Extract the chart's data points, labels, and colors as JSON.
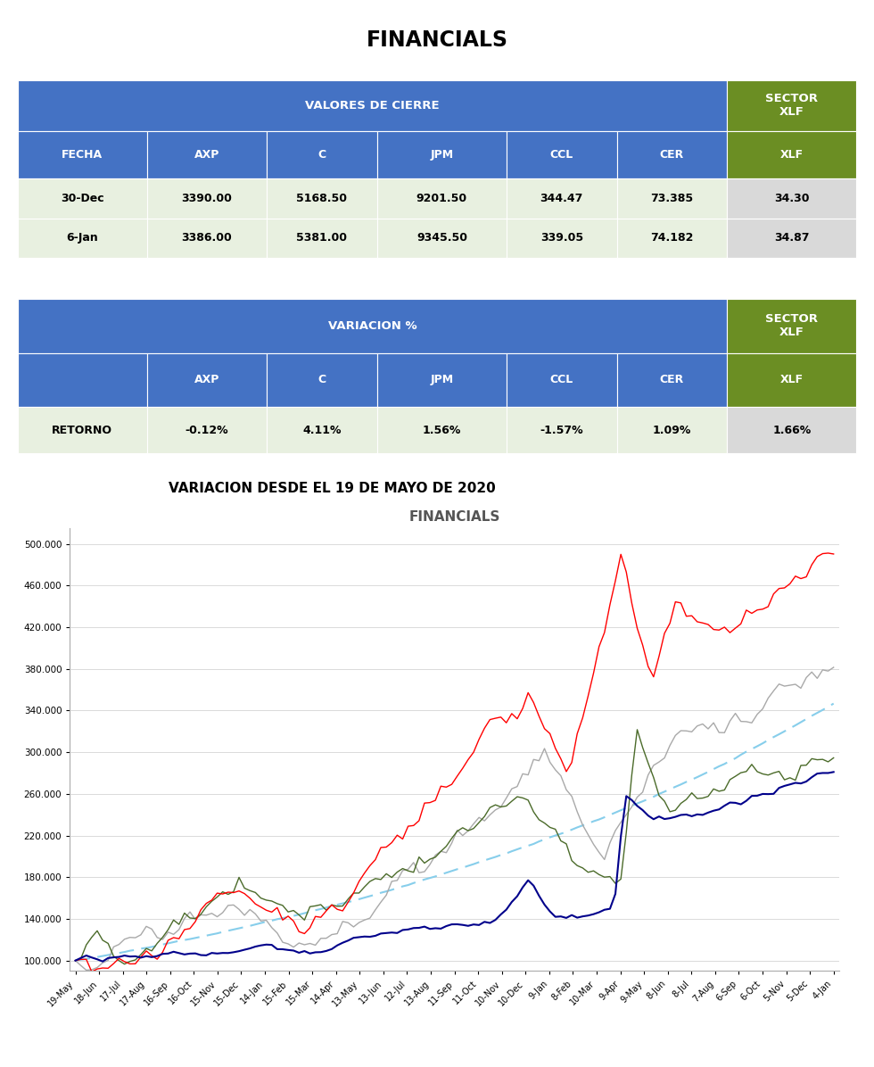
{
  "title": "FINANCIALS",
  "table1_header_main": "VALORES DE CIERRE",
  "table1_header_sector": "SECTOR\nXLF",
  "table1_cols": [
    "FECHA",
    "AXP",
    "C",
    "JPM",
    "CCL",
    "CER"
  ],
  "table1_rows": [
    [
      "30-Dec",
      "3390.00",
      "5168.50",
      "9201.50",
      "344.47",
      "73.385",
      "34.30"
    ],
    [
      "6-Jan",
      "3386.00",
      "5381.00",
      "9345.50",
      "339.05",
      "74.182",
      "34.87"
    ]
  ],
  "table2_header_main": "VARIACION %",
  "table2_header_sector": "SECTOR\nXLF",
  "table2_row": [
    "RETORNO",
    "-0.12%",
    "4.11%",
    "1.56%",
    "-1.57%",
    "1.09%",
    "1.66%"
  ],
  "section2_title": "VARIACION DESDE EL 19 DE MAYO DE 2020",
  "chart_title": "FINANCIALS",
  "header_blue": "#4472C4",
  "header_green": "#6B8E23",
  "row_light_green": "#E8F0E0",
  "row_light_gray": "#D9D9D9",
  "color_AXP": "#FF0000",
  "color_C": "#4B6B2A",
  "color_JPM": "#A9A9A9",
  "color_CCL": "#00008B",
  "color_CER": "#87CEEB",
  "chart_yticks": [
    100000,
    140000,
    180000,
    220000,
    260000,
    300000,
    340000,
    380000,
    420000,
    460000,
    500000
  ],
  "chart_ytick_labels": [
    "100.000",
    "140.000",
    "180.000",
    "220.000",
    "260.000",
    "300.000",
    "340.000",
    "380.000",
    "420.000",
    "460.000",
    "500.000"
  ],
  "xtick_labels": [
    "19-May",
    "18-Jun",
    "17-Jul",
    "17-Aug",
    "16-Sep",
    "16-Oct",
    "15-Nov",
    "15-Dec",
    "14-Jan",
    "15-Feb",
    "15-Mar",
    "14-Apr",
    "13-May",
    "13-Jun",
    "12-Jul",
    "13-Aug",
    "11-Sep",
    "11-Oct",
    "10-Nov",
    "10-Dec",
    "9-Jan",
    "8-Feb",
    "10-Mar",
    "9-Apr",
    "9-May",
    "8-Jun",
    "8-Jul",
    "7-Aug",
    "6-Sep",
    "6-Oct",
    "5-Nov",
    "5-Dec",
    "4-Jan"
  ]
}
